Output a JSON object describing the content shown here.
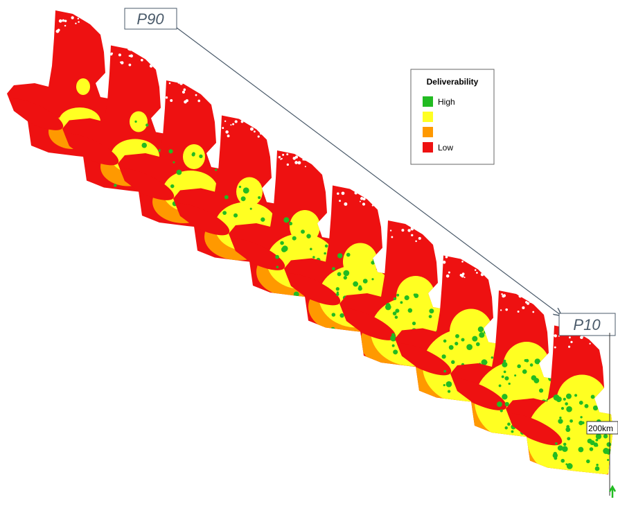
{
  "callouts": {
    "top": "P90",
    "bottom": "P10"
  },
  "legend": {
    "title": "Deliverability",
    "high": "High",
    "low": "Low"
  },
  "scale_bar": "200km"
}
